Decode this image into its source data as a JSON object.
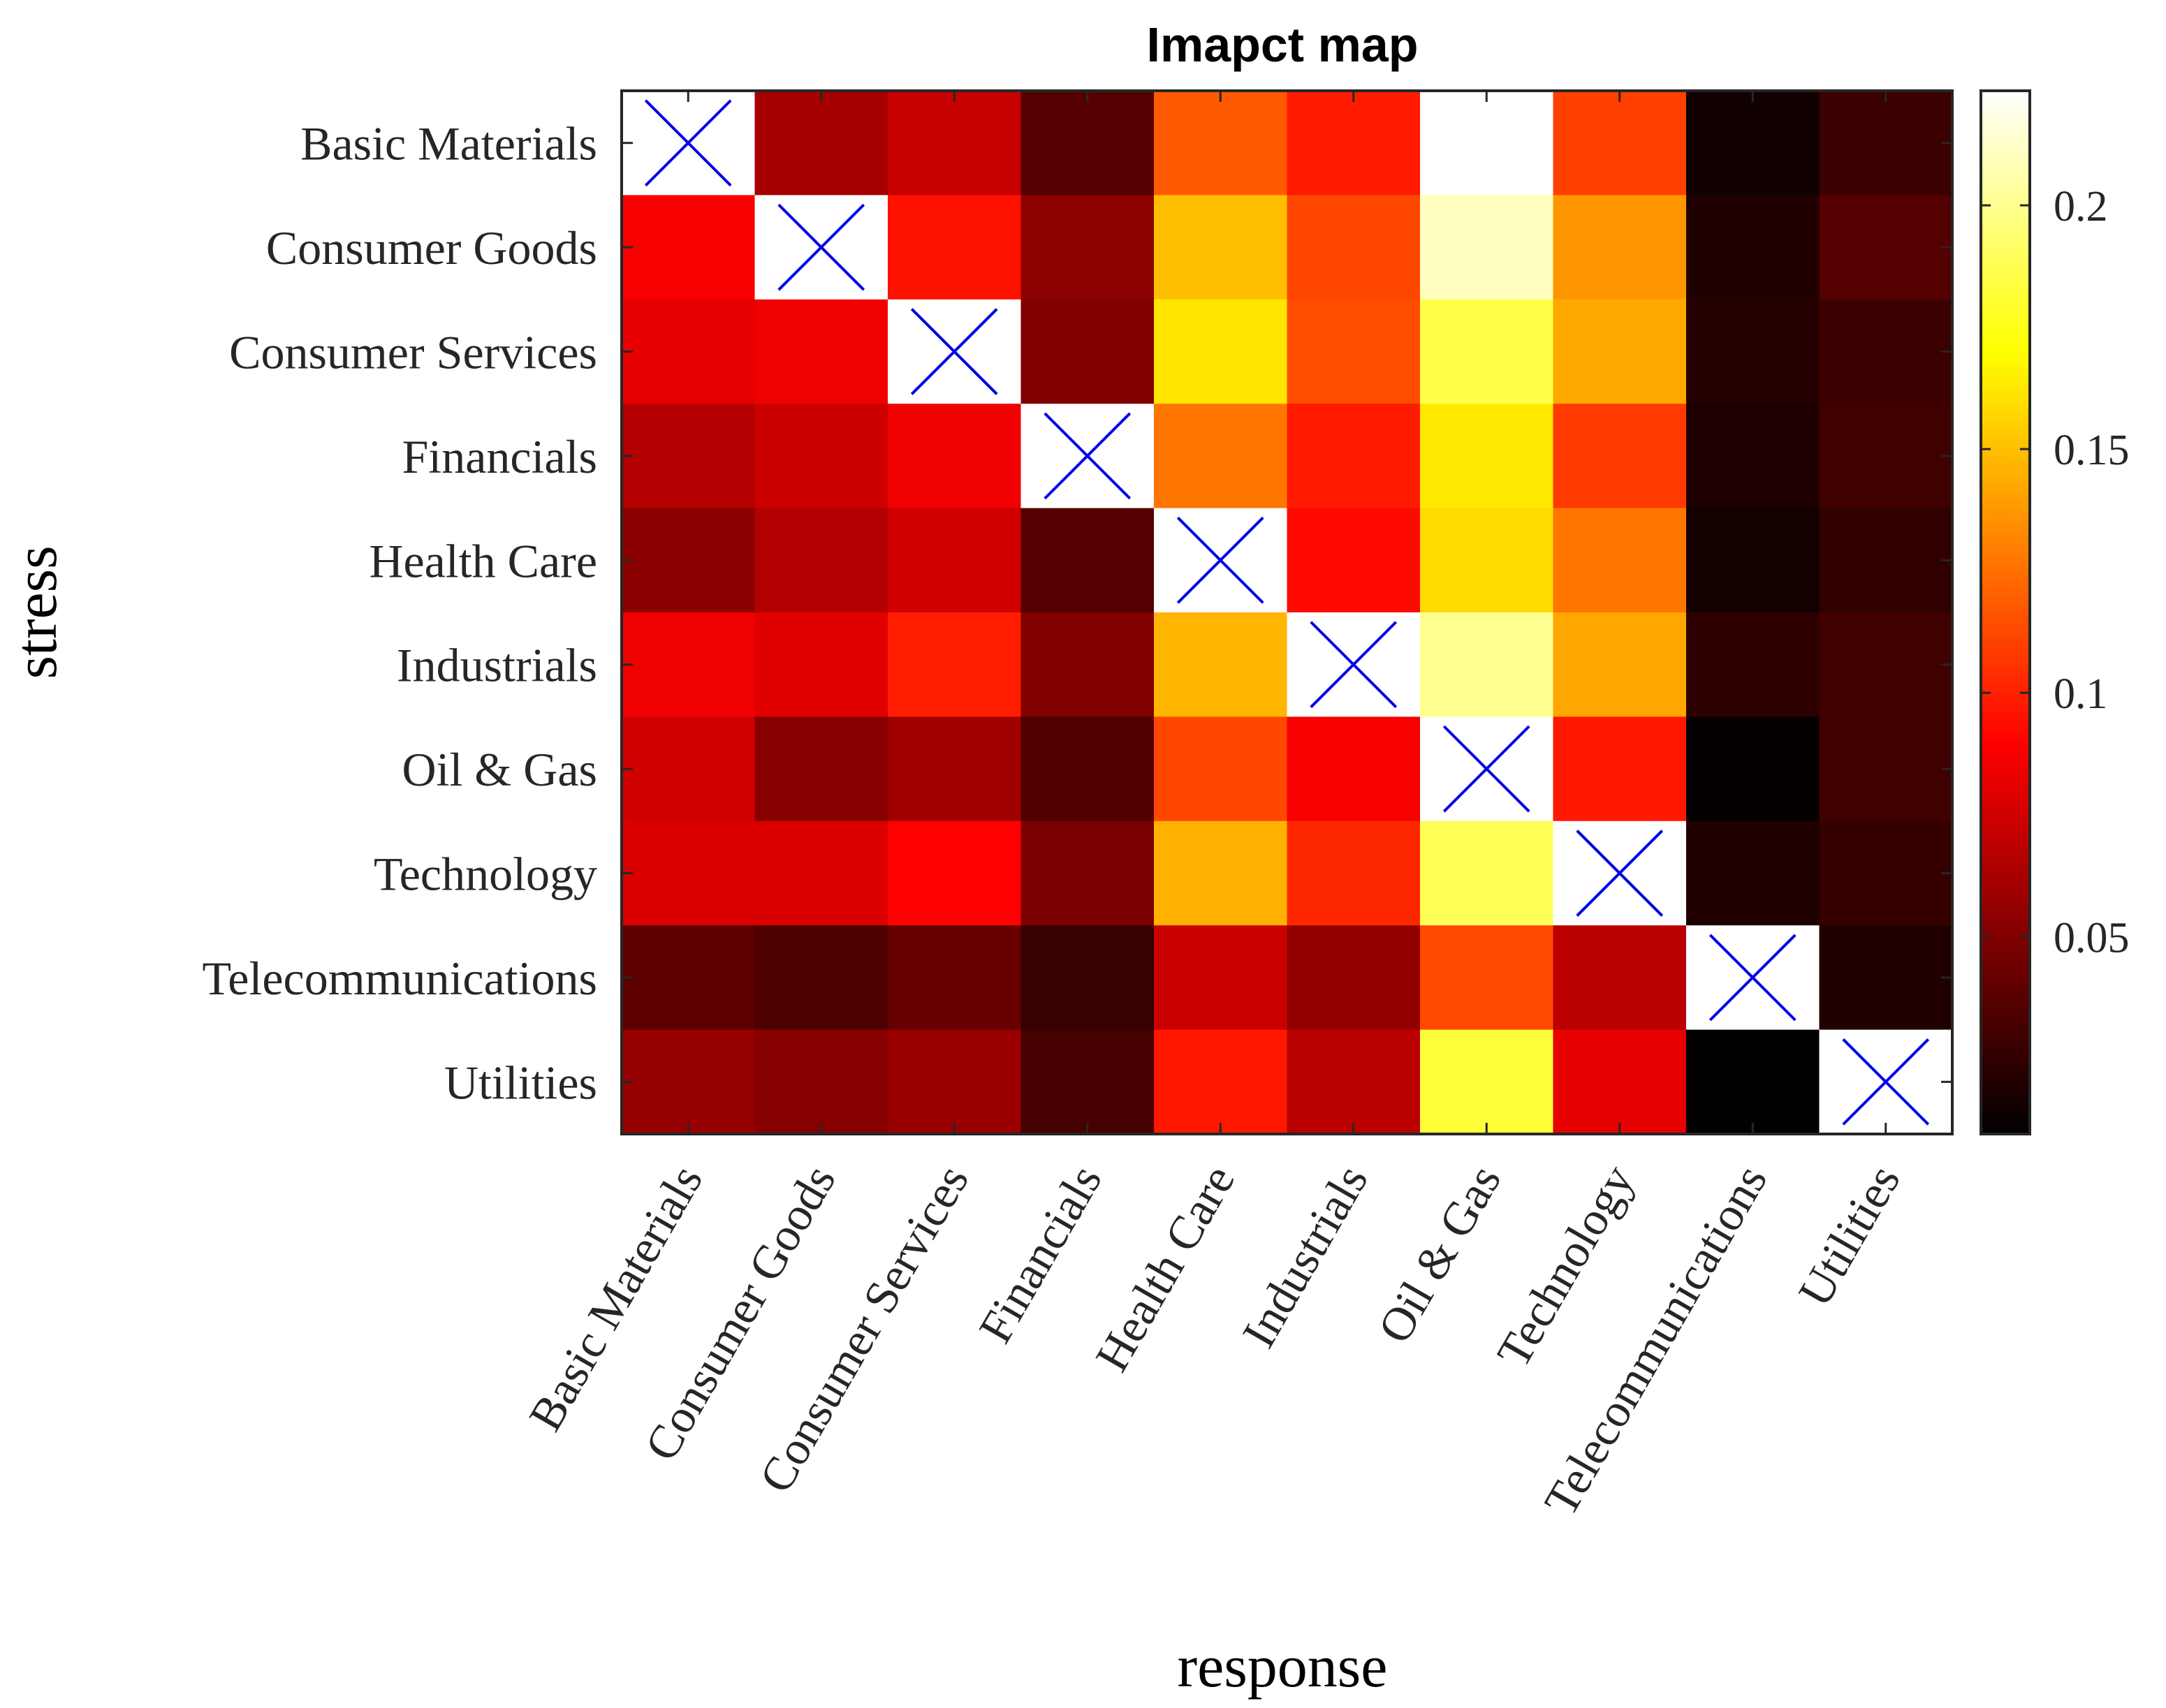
{
  "chart_data": {
    "type": "heatmap",
    "title": "Imapct map",
    "xlabel": "response",
    "ylabel": "stress",
    "x_categories": [
      "Basic Materials",
      "Consumer Goods",
      "Consumer Services",
      "Financials",
      "Health Care",
      "Industrials",
      "Oil & Gas",
      "Technology",
      "Telecommunications",
      "Utilities"
    ],
    "y_categories": [
      "Basic Materials",
      "Consumer Goods",
      "Consumer Services",
      "Financials",
      "Health Care",
      "Industrials",
      "Oil & Gas",
      "Technology",
      "Telecommunications",
      "Utilities"
    ],
    "values": [
      [
        null,
        0.062,
        0.072,
        0.036,
        0.118,
        0.098,
        0.223,
        0.11,
        0.015,
        0.028
      ],
      [
        0.087,
        null,
        0.095,
        0.054,
        0.15,
        0.112,
        0.21,
        0.137,
        0.02,
        0.036
      ],
      [
        0.082,
        0.085,
        null,
        0.05,
        0.162,
        0.114,
        0.185,
        0.143,
        0.021,
        0.028
      ],
      [
        0.066,
        0.074,
        0.085,
        null,
        0.127,
        0.098,
        0.163,
        0.108,
        0.019,
        0.03
      ],
      [
        0.053,
        0.066,
        0.075,
        0.036,
        null,
        0.093,
        0.159,
        0.127,
        0.016,
        0.025
      ],
      [
        0.085,
        0.08,
        0.099,
        0.05,
        0.147,
        null,
        0.2,
        0.142,
        0.024,
        0.03
      ],
      [
        0.075,
        0.052,
        0.06,
        0.035,
        0.112,
        0.087,
        null,
        0.097,
        0.011,
        0.03
      ],
      [
        0.078,
        0.078,
        0.09,
        0.048,
        0.146,
        0.102,
        0.188,
        null,
        0.02,
        0.026
      ],
      [
        0.039,
        0.034,
        0.042,
        0.027,
        0.073,
        0.056,
        0.113,
        0.068,
        null,
        0.02
      ],
      [
        0.057,
        0.052,
        0.058,
        0.032,
        0.097,
        0.068,
        0.182,
        0.082,
        0.01,
        null
      ]
    ],
    "diagonal_marker": "×",
    "colormap": "hot",
    "colorbar": {
      "min": 0.0095,
      "max": 0.2235,
      "ticks": [
        0.05,
        0.1,
        0.15,
        0.2
      ],
      "tick_labels": [
        "0.05",
        "0.1",
        "0.15",
        "0.2"
      ]
    },
    "grid": false,
    "marker_color": "#0000e6"
  }
}
